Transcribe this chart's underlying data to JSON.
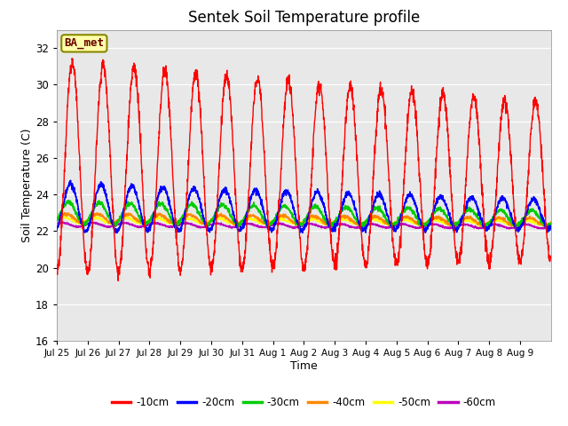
{
  "title": "Sentek Soil Temperature profile",
  "xlabel": "Time",
  "ylabel": "Soil Temperature (C)",
  "ylim": [
    16,
    33
  ],
  "yticks": [
    16,
    18,
    20,
    22,
    24,
    26,
    28,
    30,
    32
  ],
  "bg_color": "#e8e8e8",
  "legend_label": "BA_met",
  "line_colors": {
    "-10cm": "#ff0000",
    "-20cm": "#0000ff",
    "-30cm": "#00cc00",
    "-40cm": "#ff8800",
    "-50cm": "#ffff00",
    "-60cm": "#bb00bb"
  },
  "day_labels": [
    "Jul 25",
    "Jul 26",
    "Jul 27",
    "Jul 28",
    "Jul 29",
    "Jul 30",
    "Jul 31",
    "Aug 1",
    "Aug 2",
    "Aug 3",
    "Aug 4",
    "Aug 5",
    "Aug 6",
    "Aug 7",
    "Aug 8",
    "Aug 9"
  ]
}
